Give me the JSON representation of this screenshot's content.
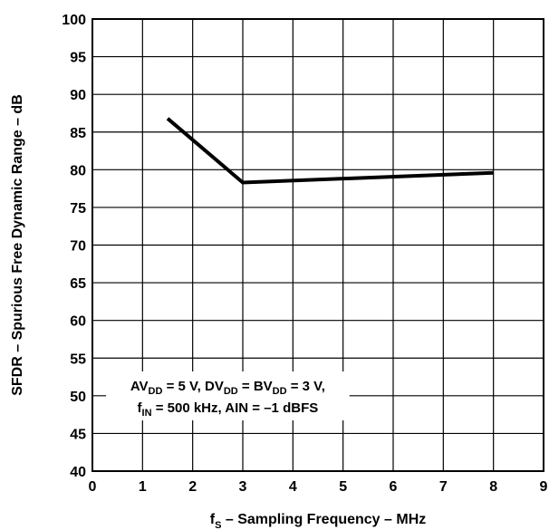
{
  "chart_data": {
    "type": "line",
    "xlabel": {
      "main": "f",
      "sub": "S",
      "rest": " – Sampling Frequency – MHz"
    },
    "ylabel": "SFDR – Spurious Free Dynamic Range – dB",
    "xlim": [
      0,
      9
    ],
    "ylim": [
      40,
      100
    ],
    "xticks": [
      0,
      1,
      2,
      3,
      4,
      5,
      6,
      7,
      8,
      9
    ],
    "yticks": [
      40,
      45,
      50,
      55,
      60,
      65,
      70,
      75,
      80,
      85,
      90,
      95,
      100
    ],
    "grid": true,
    "series": [
      {
        "x": [
          1.5,
          3,
          8
        ],
        "y": [
          86.8,
          78.3,
          79.6
        ]
      }
    ],
    "annotation": {
      "line1": [
        {
          "t": "AV"
        },
        {
          "t": "DD",
          "sub": true
        },
        {
          "t": " = 5 V, DV"
        },
        {
          "t": "DD",
          "sub": true
        },
        {
          "t": " = BV"
        },
        {
          "t": "DD",
          "sub": true
        },
        {
          "t": " = 3 V,"
        }
      ],
      "line2": [
        {
          "t": "f"
        },
        {
          "t": "IN",
          "sub": true
        },
        {
          "t": " = 500 kHz, AIN = –1 dBFS"
        }
      ]
    },
    "colors": {
      "line": "#000000",
      "grid": "#000000"
    }
  }
}
